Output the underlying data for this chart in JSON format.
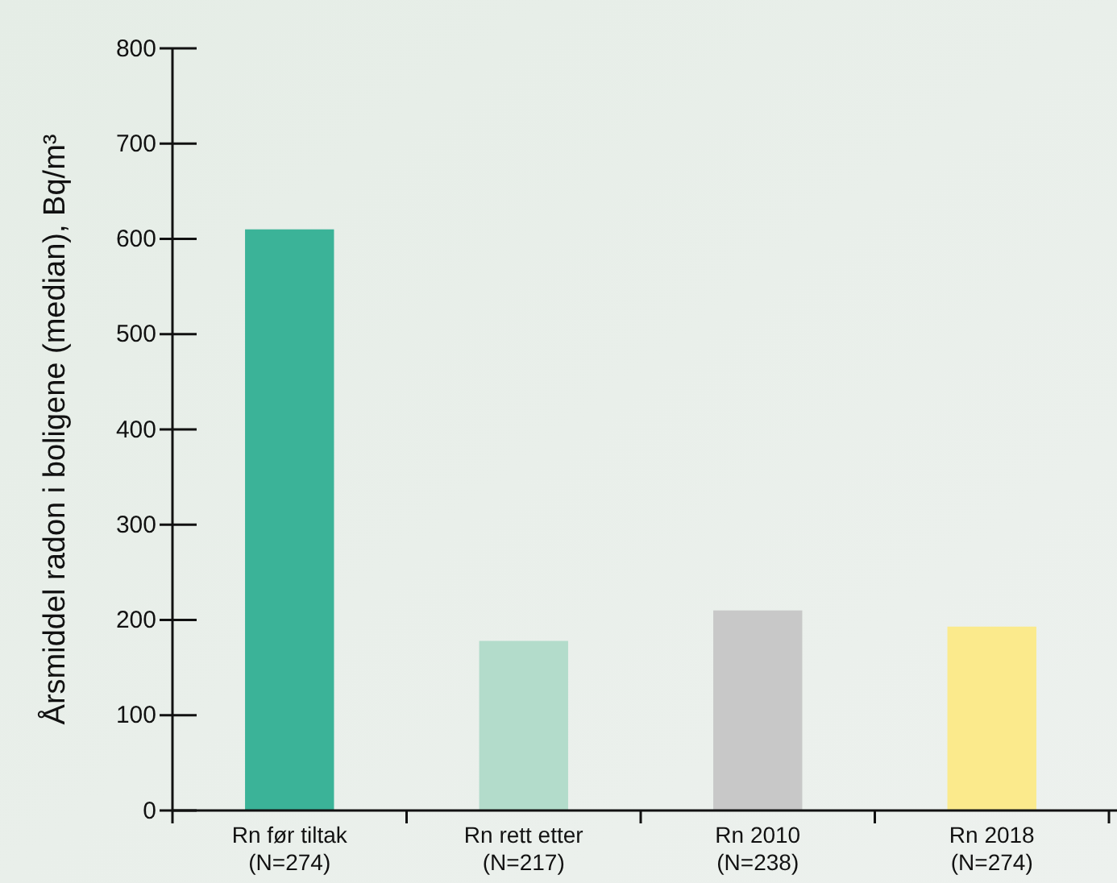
{
  "chart_data": {
    "type": "bar",
    "ylabel": "Årsmiddel radon i boligene (median), Bq/m³",
    "categories": [
      "Rn før tiltak\n(N=274)",
      "Rn rett etter\n(N=217)",
      "Rn 2010\n(N=238)",
      "Rn 2018\n(N=274)"
    ],
    "values": [
      610,
      178,
      210,
      193
    ],
    "colors": [
      "#3bb398",
      "#b3dccb",
      "#c8c8c8",
      "#fbea8c"
    ],
    "ylim": [
      0,
      800
    ],
    "yticks": [
      0,
      100,
      200,
      300,
      400,
      500,
      600,
      700,
      800
    ]
  }
}
